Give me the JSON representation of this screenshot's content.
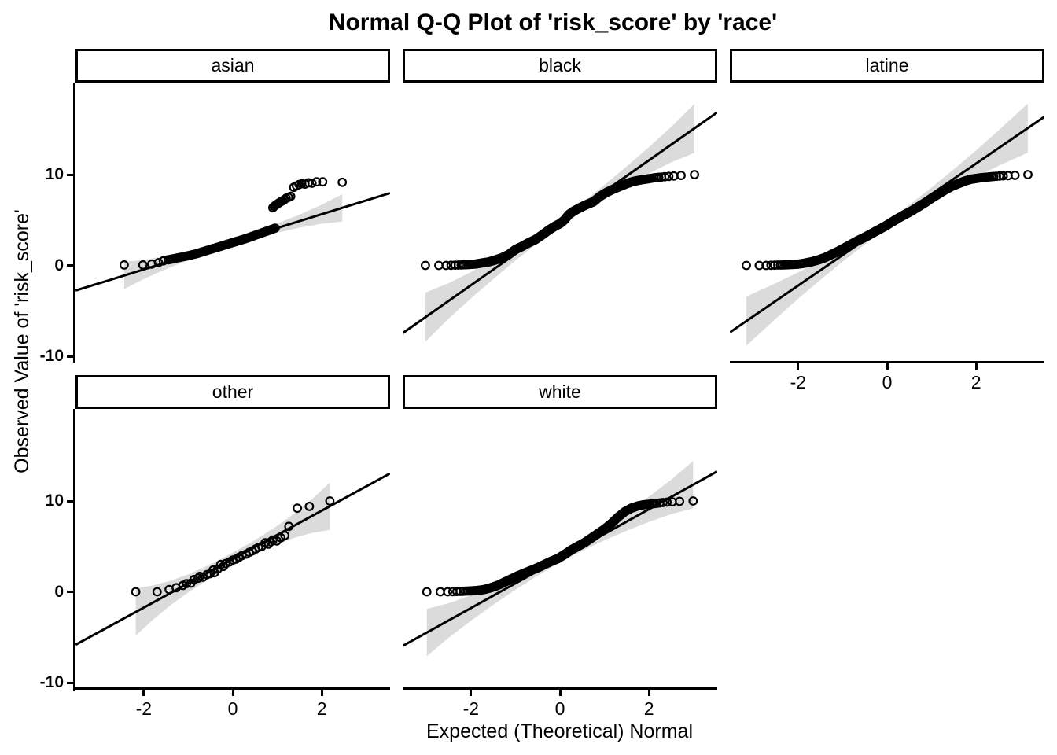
{
  "chart_data": {
    "type": "scatter",
    "subtype": "faceted-normal-qq-plot",
    "title": "Normal Q-Q Plot of 'risk_score' by 'race'",
    "xlabel": "Expected (Theoretical) Normal",
    "ylabel": "Observed Value of 'risk_score'",
    "facet_variable": "race",
    "grid": false,
    "legend": "none",
    "x_ticks": [
      -2,
      0,
      2
    ],
    "x_tick_labels": [
      "-2",
      "0",
      "2"
    ],
    "y_ticks": [
      10,
      0,
      -10
    ],
    "y_tick_labels": [
      "10",
      "0",
      "-10"
    ],
    "x_range": [
      -3.53,
      3.53
    ],
    "y_range": [
      -10.7,
      20.1
    ],
    "colors": {
      "background": "#FFFFFF",
      "text": "#000000",
      "axis": "#000000",
      "reference_line": "#000000",
      "point_stroke": "#000000",
      "band": "#DBDBDB"
    },
    "facets": [
      {
        "label": "asian",
        "row": 0,
        "col": 0,
        "show_x_axis": false,
        "show_y_axis": true,
        "line": {
          "slope": 1.52,
          "intercept": 2.6
        },
        "band": {
          "x": [
            -2.44,
            -2.0,
            -1.5,
            -1.0,
            -0.5,
            0.0,
            0.5,
            1.0,
            1.5,
            2.0,
            2.46
          ],
          "half_width": [
            1.5,
            1.05,
            0.72,
            0.5,
            0.39,
            0.35,
            0.39,
            0.5,
            0.72,
            1.05,
            1.5
          ]
        },
        "points": [
          [
            -2.44,
            0.05
          ],
          [
            -2.02,
            0.05
          ],
          [
            -1.82,
            0.15
          ],
          [
            -1.67,
            0.3
          ],
          [
            -1.56,
            0.5
          ],
          [
            -1.45,
            0.62
          ],
          [
            -1.41,
            0.66
          ],
          [
            -1.37,
            0.7
          ],
          [
            -1.33,
            0.74
          ],
          [
            -1.29,
            0.78
          ],
          [
            -1.25,
            0.82
          ],
          [
            -1.21,
            0.86
          ],
          [
            -1.17,
            0.9
          ],
          [
            -1.13,
            0.94
          ],
          [
            -1.09,
            0.98
          ],
          [
            -1.05,
            1.02
          ],
          [
            -1.01,
            1.06
          ],
          [
            -0.97,
            1.1
          ],
          [
            -0.93,
            1.15
          ],
          [
            -0.89,
            1.2
          ],
          [
            -0.85,
            1.25
          ],
          [
            -0.81,
            1.3
          ],
          [
            -0.77,
            1.36
          ],
          [
            -0.73,
            1.42
          ],
          [
            -0.69,
            1.48
          ],
          [
            -0.65,
            1.54
          ],
          [
            -0.61,
            1.6
          ],
          [
            -0.57,
            1.66
          ],
          [
            -0.53,
            1.72
          ],
          [
            -0.49,
            1.78
          ],
          [
            -0.45,
            1.84
          ],
          [
            -0.41,
            1.9
          ],
          [
            -0.37,
            1.96
          ],
          [
            -0.33,
            2.02
          ],
          [
            -0.29,
            2.08
          ],
          [
            -0.25,
            2.14
          ],
          [
            -0.21,
            2.2
          ],
          [
            -0.17,
            2.26
          ],
          [
            -0.13,
            2.32
          ],
          [
            -0.09,
            2.38
          ],
          [
            -0.05,
            2.44
          ],
          [
            -0.01,
            2.5
          ],
          [
            0.03,
            2.56
          ],
          [
            0.07,
            2.62
          ],
          [
            0.11,
            2.68
          ],
          [
            0.15,
            2.74
          ],
          [
            0.19,
            2.8
          ],
          [
            0.23,
            2.86
          ],
          [
            0.27,
            2.92
          ],
          [
            0.31,
            2.98
          ],
          [
            0.35,
            3.05
          ],
          [
            0.39,
            3.12
          ],
          [
            0.43,
            3.19
          ],
          [
            0.47,
            3.26
          ],
          [
            0.51,
            3.33
          ],
          [
            0.55,
            3.4
          ],
          [
            0.59,
            3.47
          ],
          [
            0.63,
            3.54
          ],
          [
            0.67,
            3.61
          ],
          [
            0.71,
            3.68
          ],
          [
            0.75,
            3.75
          ],
          [
            0.79,
            3.82
          ],
          [
            0.83,
            3.89
          ],
          [
            0.87,
            3.96
          ],
          [
            0.91,
            4.03
          ],
          [
            0.95,
            4.1
          ],
          [
            0.9,
            6.35
          ],
          [
            0.93,
            6.5
          ],
          [
            0.96,
            6.62
          ],
          [
            0.99,
            6.72
          ],
          [
            1.02,
            6.82
          ],
          [
            1.05,
            6.92
          ],
          [
            1.08,
            7.02
          ],
          [
            1.12,
            7.12
          ],
          [
            1.16,
            7.25
          ],
          [
            1.2,
            7.4
          ],
          [
            1.25,
            7.5
          ],
          [
            1.3,
            7.6
          ],
          [
            1.37,
            8.6
          ],
          [
            1.43,
            8.75
          ],
          [
            1.49,
            8.9
          ],
          [
            1.55,
            9.0
          ],
          [
            1.62,
            8.95
          ],
          [
            1.7,
            9.1
          ],
          [
            1.78,
            9.05
          ],
          [
            1.88,
            9.2
          ],
          [
            2.02,
            9.2
          ],
          [
            2.46,
            9.15
          ]
        ]
      },
      {
        "label": "black",
        "row": 0,
        "col": 1,
        "show_x_axis": false,
        "show_y_axis": false,
        "n_points": 500,
        "line": {
          "slope": 3.44,
          "intercept": 4.7
        },
        "band": {
          "x": [
            -3.02,
            -2.5,
            -2.0,
            -1.5,
            -1.0,
            -0.5,
            0.0,
            0.5,
            1.0,
            1.5,
            2.0,
            2.5,
            3.02
          ],
          "half_width": [
            2.7,
            1.95,
            1.45,
            1.05,
            0.72,
            0.5,
            0.42,
            0.5,
            0.72,
            1.05,
            1.45,
            1.95,
            2.7
          ]
        },
        "curve": [
          [
            -3.04,
            0
          ],
          [
            -2.86,
            0
          ],
          [
            -2.72,
            0
          ],
          [
            -2.58,
            0
          ],
          [
            -2.45,
            0.02
          ],
          [
            -2.3,
            0.04
          ],
          [
            -2.1,
            0.08
          ],
          [
            -1.9,
            0.15
          ],
          [
            -1.75,
            0.28
          ],
          [
            -1.6,
            0.38
          ],
          [
            -1.45,
            0.6
          ],
          [
            -1.3,
            0.85
          ],
          [
            -1.15,
            1.2
          ],
          [
            -1.0,
            1.75
          ],
          [
            -0.85,
            2.1
          ],
          [
            -0.7,
            2.5
          ],
          [
            -0.55,
            2.85
          ],
          [
            -0.4,
            3.35
          ],
          [
            -0.25,
            3.9
          ],
          [
            -0.1,
            4.35
          ],
          [
            0.0,
            4.6
          ],
          [
            0.1,
            5.0
          ],
          [
            0.2,
            5.6
          ],
          [
            0.3,
            5.95
          ],
          [
            0.45,
            6.35
          ],
          [
            0.6,
            6.7
          ],
          [
            0.75,
            7.0
          ],
          [
            0.9,
            7.6
          ],
          [
            1.05,
            8.05
          ],
          [
            1.2,
            8.4
          ],
          [
            1.35,
            8.7
          ],
          [
            1.5,
            9.0
          ],
          [
            1.65,
            9.25
          ],
          [
            1.8,
            9.4
          ],
          [
            2.0,
            9.55
          ],
          [
            2.2,
            9.7
          ],
          [
            2.45,
            9.8
          ],
          [
            2.7,
            9.9
          ],
          [
            3.02,
            10.0
          ]
        ]
      },
      {
        "label": "latine",
        "row": 0,
        "col": 2,
        "show_x_axis": true,
        "show_y_axis": false,
        "n_points": 800,
        "line": {
          "slope": 3.36,
          "intercept": 4.5
        },
        "band": {
          "x": [
            -3.16,
            -2.5,
            -2.0,
            -1.5,
            -1.0,
            -0.5,
            0.0,
            0.5,
            1.0,
            1.5,
            2.0,
            2.5,
            3.16
          ],
          "half_width": [
            2.7,
            1.95,
            1.45,
            1.05,
            0.72,
            0.5,
            0.42,
            0.5,
            0.72,
            1.05,
            1.45,
            1.95,
            2.7
          ]
        },
        "curve": [
          [
            -3.16,
            0
          ],
          [
            -2.89,
            0
          ],
          [
            -2.75,
            0
          ],
          [
            -2.6,
            0.02
          ],
          [
            -2.45,
            0.04
          ],
          [
            -2.3,
            0.06
          ],
          [
            -2.15,
            0.1
          ],
          [
            -2.0,
            0.14
          ],
          [
            -1.85,
            0.25
          ],
          [
            -1.7,
            0.4
          ],
          [
            -1.55,
            0.6
          ],
          [
            -1.4,
            0.85
          ],
          [
            -1.25,
            1.2
          ],
          [
            -1.1,
            1.55
          ],
          [
            -0.95,
            1.95
          ],
          [
            -0.8,
            2.35
          ],
          [
            -0.65,
            2.75
          ],
          [
            -0.5,
            3.1
          ],
          [
            -0.35,
            3.5
          ],
          [
            -0.2,
            3.9
          ],
          [
            -0.05,
            4.3
          ],
          [
            0.1,
            4.75
          ],
          [
            0.25,
            5.2
          ],
          [
            0.4,
            5.6
          ],
          [
            0.55,
            6.0
          ],
          [
            0.7,
            6.45
          ],
          [
            0.85,
            6.9
          ],
          [
            1.0,
            7.4
          ],
          [
            1.15,
            7.85
          ],
          [
            1.3,
            8.3
          ],
          [
            1.45,
            8.7
          ],
          [
            1.6,
            9.0
          ],
          [
            1.75,
            9.3
          ],
          [
            1.9,
            9.5
          ],
          [
            2.1,
            9.65
          ],
          [
            2.3,
            9.75
          ],
          [
            2.55,
            9.85
          ],
          [
            2.85,
            9.92
          ],
          [
            3.16,
            10.0
          ]
        ]
      },
      {
        "label": "other",
        "row": 1,
        "col": 0,
        "show_x_axis": true,
        "show_y_axis": true,
        "line": {
          "slope": 2.67,
          "intercept": 3.6
        },
        "band": {
          "x": [
            -2.18,
            -1.8,
            -1.4,
            -1.0,
            -0.6,
            -0.2,
            0.2,
            0.6,
            1.0,
            1.4,
            1.8,
            2.18
          ],
          "half_width": [
            2.6,
            1.9,
            1.35,
            1.0,
            0.8,
            0.72,
            0.72,
            0.8,
            1.0,
            1.35,
            1.9,
            2.6
          ]
        },
        "points": [
          [
            -2.18,
            0.0
          ],
          [
            -1.7,
            0.0
          ],
          [
            -1.43,
            0.25
          ],
          [
            -1.27,
            0.45
          ],
          [
            -1.12,
            0.7
          ],
          [
            -1.04,
            0.9
          ],
          [
            -0.94,
            0.95
          ],
          [
            -0.87,
            1.35
          ],
          [
            -0.78,
            1.5
          ],
          [
            -0.74,
            1.7
          ],
          [
            -0.67,
            1.6
          ],
          [
            -0.58,
            1.9
          ],
          [
            -0.51,
            2.0
          ],
          [
            -0.44,
            2.4
          ],
          [
            -0.41,
            2.1
          ],
          [
            -0.34,
            2.5
          ],
          [
            -0.27,
            3.0
          ],
          [
            -0.21,
            2.8
          ],
          [
            -0.16,
            3.1
          ],
          [
            -0.07,
            3.3
          ],
          [
            0.0,
            3.5
          ],
          [
            0.07,
            3.6
          ],
          [
            0.14,
            3.8
          ],
          [
            0.21,
            4.0
          ],
          [
            0.3,
            4.15
          ],
          [
            0.37,
            4.35
          ],
          [
            0.44,
            4.5
          ],
          [
            0.51,
            4.7
          ],
          [
            0.58,
            4.9
          ],
          [
            0.65,
            5.0
          ],
          [
            0.73,
            5.4
          ],
          [
            0.8,
            5.25
          ],
          [
            0.85,
            5.5
          ],
          [
            0.9,
            5.7
          ],
          [
            0.99,
            5.6
          ],
          [
            1.08,
            5.95
          ],
          [
            1.17,
            6.2
          ],
          [
            1.26,
            7.2
          ],
          [
            1.45,
            9.2
          ],
          [
            1.72,
            9.4
          ],
          [
            2.18,
            10.0
          ]
        ]
      },
      {
        "label": "white",
        "row": 1,
        "col": 1,
        "show_x_axis": true,
        "show_y_axis": false,
        "n_points": 450,
        "line": {
          "slope": 2.72,
          "intercept": 3.65
        },
        "band": {
          "x": [
            -2.99,
            -2.5,
            -2.0,
            -1.5,
            -1.0,
            -0.5,
            0.0,
            0.5,
            1.0,
            1.5,
            2.0,
            2.5,
            2.99
          ],
          "half_width": [
            2.6,
            1.9,
            1.4,
            1.0,
            0.7,
            0.5,
            0.42,
            0.5,
            0.7,
            1.0,
            1.4,
            1.9,
            2.6
          ]
        },
        "curve": [
          [
            -2.99,
            0
          ],
          [
            -2.7,
            0
          ],
          [
            -2.55,
            0
          ],
          [
            -2.4,
            0.02
          ],
          [
            -2.2,
            0.06
          ],
          [
            -2.0,
            0.1
          ],
          [
            -1.85,
            0.15
          ],
          [
            -1.7,
            0.25
          ],
          [
            -1.55,
            0.45
          ],
          [
            -1.4,
            0.7
          ],
          [
            -1.25,
            1.05
          ],
          [
            -1.1,
            1.4
          ],
          [
            -0.95,
            1.75
          ],
          [
            -0.8,
            2.05
          ],
          [
            -0.65,
            2.35
          ],
          [
            -0.5,
            2.65
          ],
          [
            -0.35,
            3.0
          ],
          [
            -0.2,
            3.35
          ],
          [
            -0.05,
            3.65
          ],
          [
            0.1,
            4.1
          ],
          [
            0.25,
            4.6
          ],
          [
            0.4,
            5.0
          ],
          [
            0.55,
            5.4
          ],
          [
            0.7,
            5.9
          ],
          [
            0.85,
            6.4
          ],
          [
            1.0,
            6.9
          ],
          [
            1.15,
            7.5
          ],
          [
            1.3,
            8.2
          ],
          [
            1.45,
            8.8
          ],
          [
            1.6,
            9.2
          ],
          [
            1.75,
            9.45
          ],
          [
            1.9,
            9.6
          ],
          [
            2.1,
            9.7
          ],
          [
            2.35,
            9.85
          ],
          [
            2.65,
            9.95
          ],
          [
            2.99,
            10.0
          ]
        ]
      }
    ]
  }
}
